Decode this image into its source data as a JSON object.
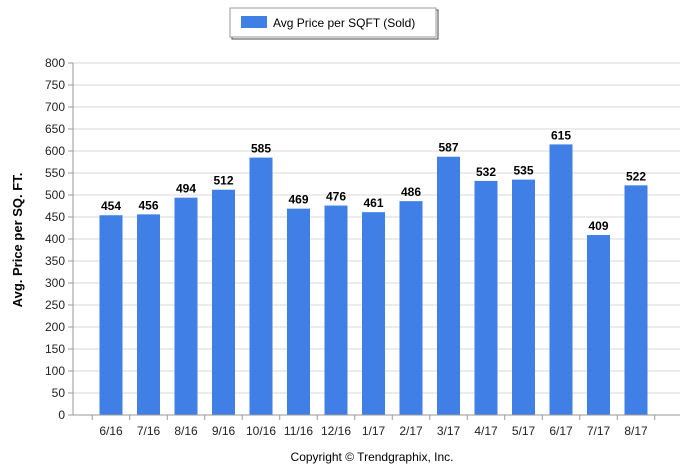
{
  "chart_data": {
    "type": "bar",
    "categories": [
      "6/16",
      "7/16",
      "8/16",
      "9/16",
      "10/16",
      "11/16",
      "12/16",
      "1/17",
      "2/17",
      "3/17",
      "4/17",
      "5/17",
      "6/17",
      "7/17",
      "8/17"
    ],
    "series": [
      {
        "name": "Avg Price per SQFT (Sold)",
        "values": [
          454,
          456,
          494,
          512,
          585,
          469,
          476,
          461,
          486,
          587,
          532,
          535,
          615,
          409,
          522
        ],
        "color": "#3f7fe6"
      }
    ],
    "ylabel": "Avg. Price per SQ. FT.",
    "xlabel": "",
    "ylim": [
      0,
      800
    ],
    "yticks": [
      0,
      50,
      100,
      150,
      200,
      250,
      300,
      350,
      400,
      450,
      500,
      550,
      600,
      650,
      700,
      750,
      800
    ],
    "grid": true,
    "legend_position": "top-center",
    "copyright": "Copyright © Trendgraphix, Inc."
  }
}
